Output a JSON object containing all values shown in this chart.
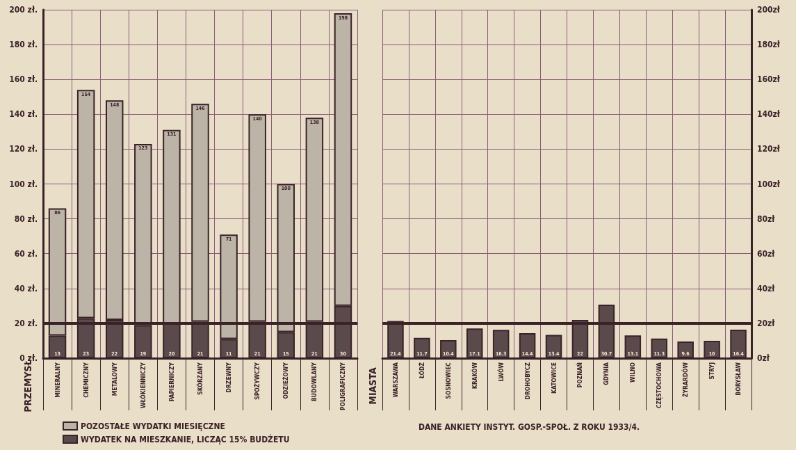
{
  "chart_data": [
    {
      "type": "bar",
      "stacked": true,
      "grid": true,
      "legend": "bottom left",
      "annotations": [
        "PRZEMYSŁ"
      ],
      "totals": [
        "86",
        "154",
        "148",
        "123",
        "131",
        "146",
        "71",
        "140",
        "100",
        "138",
        "198"
      ],
      "categories": [
        "MINERALNY",
        "CHEMICZNY",
        "METALOWY",
        "WŁÓKIENNICZY",
        "PAPIERNICZY",
        "SKÓRZANY",
        "DRZEWNY",
        "SPOŻYWCZY",
        "ODZIEŻOWY",
        "BUDOWLANY",
        "POLIGRAFICZNY"
      ],
      "series": [
        {
          "name": "WYDATEK NA MIESZKANIE, LICZĄC 15% BUDŻETU",
          "color": "#5b4a4c",
          "values": [
            13,
            23,
            22,
            19,
            20,
            21,
            11,
            21,
            15,
            21,
            30
          ],
          "value_labels": [
            "13",
            "23",
            "22",
            "19",
            "20",
            "21",
            "11",
            "21",
            "15",
            "21",
            "30"
          ]
        },
        {
          "name": "POZOSTAŁE WYDATKI MIESIĘCZNE",
          "color": "#bdb4a8",
          "values": [
            73,
            131,
            126,
            104,
            111,
            125,
            60,
            119,
            85,
            117,
            168
          ]
        }
      ],
      "ylim": [
        0,
        200
      ],
      "yticks": [
        {
          "value": 0,
          "label": "0 zł."
        },
        {
          "value": 20,
          "label": "20 zł."
        },
        {
          "value": 40,
          "label": "40 zł."
        },
        {
          "value": 60,
          "label": "60 zł."
        },
        {
          "value": 80,
          "label": "80 zł."
        },
        {
          "value": 100,
          "label": "100 zł."
        },
        {
          "value": 120,
          "label": "120 zł."
        },
        {
          "value": 140,
          "label": "140 zł."
        },
        {
          "value": 160,
          "label": "160 zł."
        },
        {
          "value": 180,
          "label": "180 zł."
        },
        {
          "value": 200,
          "label": "200 zł."
        }
      ],
      "ref_lines": [
        {
          "axis": "y",
          "value": 20,
          "color": "#3a2228"
        }
      ]
    },
    {
      "type": "bar",
      "grid": true,
      "data_labels": true,
      "categories": [
        "WARSZAWA",
        "ŁÓDŹ",
        "SOSNOWIEC",
        "KRAKÓW",
        "LWÓW",
        "DROHOBYCZ",
        "KATOWICE",
        "POZNAŃ",
        "GDYNIA",
        "WILNO",
        "CZĘSTOCHOWA",
        "ŻYRARDÓW",
        "STRYJ",
        "BORYSŁAW"
      ],
      "series": [
        {
          "color": "#5b4a4c",
          "axis": "y2",
          "values": [
            21.4,
            11.7,
            10.4,
            17.1,
            16.3,
            14.4,
            13.4,
            22.0,
            30.7,
            13.1,
            11.3,
            9.6,
            10.0,
            16.4
          ]
        }
      ],
      "y2lim": [
        0,
        200
      ],
      "y2ticks": [
        {
          "value": 0,
          "label": "0zł"
        },
        {
          "value": 20,
          "label": "20zł"
        },
        {
          "value": 40,
          "label": "40zł"
        },
        {
          "value": 60,
          "label": "60zł"
        },
        {
          "value": 80,
          "label": "80zł"
        },
        {
          "value": 100,
          "label": "100zł"
        },
        {
          "value": 120,
          "label": "120zł"
        },
        {
          "value": 140,
          "label": "140zł"
        },
        {
          "value": 160,
          "label": "160zł"
        },
        {
          "value": 180,
          "label": "180zł"
        },
        {
          "value": 200,
          "label": "200zł"
        }
      ],
      "ref_lines": [
        {
          "axis": "y2",
          "value": 20,
          "color": "#3a2228"
        }
      ],
      "annotations": [
        "MIASTA",
        "DANE ANKIETY INSTYT. GOSP.-SPOŁ. Z ROKU 1933/4."
      ]
    }
  ]
}
